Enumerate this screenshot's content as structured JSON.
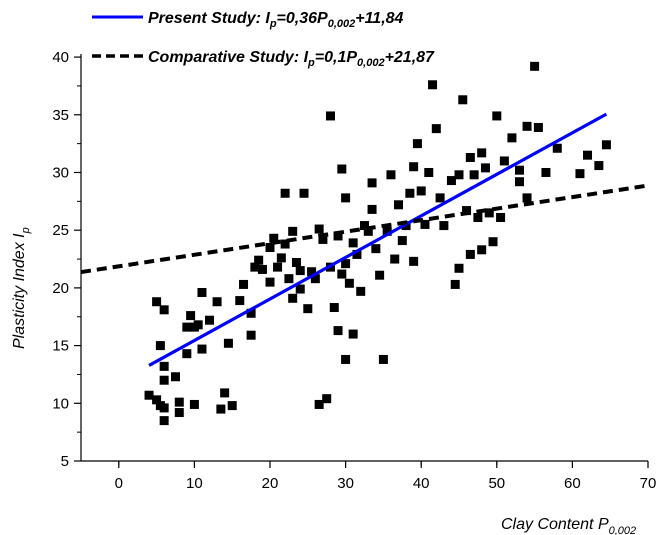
{
  "chart_data": {
    "type": "scatter",
    "xlabel": {
      "main": "Clay Content P",
      "sub": "0,002"
    },
    "ylabel": {
      "main": "Plasticity Index I",
      "sub": "p"
    },
    "xlim": [
      -5,
      70
    ],
    "ylim": [
      5,
      42
    ],
    "x_ticks": [
      0,
      10,
      20,
      30,
      40,
      50,
      60,
      70
    ],
    "y_ticks": [
      5,
      10,
      15,
      20,
      25,
      30,
      35,
      40
    ],
    "grid": false,
    "legend": {
      "placement": "top",
      "entries": [
        {
          "style": "solid",
          "color": "#0000ff",
          "parts": [
            "Present Study: I",
            "p",
            "=0,36P",
            "0,002",
            "+11,84"
          ]
        },
        {
          "style": "dashed",
          "color": "#000000",
          "parts": [
            "Comparative Study: I",
            "p",
            "=0,1P",
            "0,002",
            "+21,87"
          ]
        }
      ]
    },
    "series": [
      {
        "kind": "scatter",
        "marker": "square",
        "color": "#000000",
        "points": [
          [
            4,
            10.7
          ],
          [
            5,
            10.3
          ],
          [
            5.5,
            9.8
          ],
          [
            6,
            8.5
          ],
          [
            6,
            9.6
          ],
          [
            6,
            13.2
          ],
          [
            6,
            12
          ],
          [
            7.5,
            12.3
          ],
          [
            8,
            9.2
          ],
          [
            8,
            10.1
          ],
          [
            5,
            18.8
          ],
          [
            6,
            18.1
          ],
          [
            5.5,
            15
          ],
          [
            9,
            14.3
          ],
          [
            9,
            16.6
          ],
          [
            9.5,
            17.6
          ],
          [
            10,
            16.6
          ],
          [
            10.5,
            16.8
          ],
          [
            11,
            19.6
          ],
          [
            11,
            14.7
          ],
          [
            12,
            17.2
          ],
          [
            10,
            9.9
          ],
          [
            13,
            18.8
          ],
          [
            13.5,
            9.5
          ],
          [
            14,
            10.9
          ],
          [
            15,
            9.8
          ],
          [
            14.5,
            15.2
          ],
          [
            16,
            18.9
          ],
          [
            16.5,
            20.3
          ],
          [
            17.5,
            17.8
          ],
          [
            17.5,
            15.9
          ],
          [
            18,
            21.8
          ],
          [
            18.5,
            22.4
          ],
          [
            19,
            21.6
          ],
          [
            20,
            23.5
          ],
          [
            20,
            20.5
          ],
          [
            20.5,
            24.3
          ],
          [
            21,
            21.8
          ],
          [
            21.5,
            22.6
          ],
          [
            22,
            23.8
          ],
          [
            22,
            28.2
          ],
          [
            22.5,
            20.8
          ],
          [
            23,
            19.1
          ],
          [
            23,
            24.9
          ],
          [
            23.5,
            22.2
          ],
          [
            24,
            21.5
          ],
          [
            24,
            19.9
          ],
          [
            24.5,
            28.2
          ],
          [
            25,
            18.2
          ],
          [
            25.5,
            21.4
          ],
          [
            26,
            20.8
          ],
          [
            26.5,
            25.1
          ],
          [
            26.5,
            9.9
          ],
          [
            27,
            24.2
          ],
          [
            27.5,
            10.4
          ],
          [
            28,
            21.8
          ],
          [
            28,
            34.9
          ],
          [
            28.5,
            18.3
          ],
          [
            29,
            24.5
          ],
          [
            29,
            16.3
          ],
          [
            29.5,
            30.3
          ],
          [
            29.5,
            21.2
          ],
          [
            30,
            22.1
          ],
          [
            30,
            13.8
          ],
          [
            30,
            27.8
          ],
          [
            30.5,
            20.4
          ],
          [
            31,
            23.9
          ],
          [
            31,
            16
          ],
          [
            31.5,
            22.9
          ],
          [
            32,
            19.7
          ],
          [
            32.5,
            25.4
          ],
          [
            33,
            24.9
          ],
          [
            33.5,
            29.1
          ],
          [
            33.5,
            26.8
          ],
          [
            34,
            23.4
          ],
          [
            34.5,
            21.1
          ],
          [
            35,
            13.8
          ],
          [
            35.5,
            24.9
          ],
          [
            36,
            29.8
          ],
          [
            36.5,
            22.5
          ],
          [
            37,
            27.2
          ],
          [
            37.5,
            24.1
          ],
          [
            38,
            25.4
          ],
          [
            38.5,
            28.2
          ],
          [
            39,
            22.3
          ],
          [
            39,
            30.5
          ],
          [
            39.5,
            32.5
          ],
          [
            40,
            28.4
          ],
          [
            40.5,
            25.5
          ],
          [
            41,
            30
          ],
          [
            41.5,
            37.6
          ],
          [
            42,
            33.8
          ],
          [
            42.5,
            27.8
          ],
          [
            43,
            25.4
          ],
          [
            44,
            29.3
          ],
          [
            44.5,
            20.3
          ],
          [
            45,
            21.7
          ],
          [
            45,
            29.8
          ],
          [
            45.5,
            36.3
          ],
          [
            46,
            26.7
          ],
          [
            46.5,
            31.3
          ],
          [
            46.5,
            22.9
          ],
          [
            47,
            29.8
          ],
          [
            47.5,
            26.1
          ],
          [
            48,
            31.7
          ],
          [
            48,
            23.3
          ],
          [
            48.5,
            30.4
          ],
          [
            49,
            26.5
          ],
          [
            49.5,
            24
          ],
          [
            50,
            34.9
          ],
          [
            50.5,
            26.1
          ],
          [
            51,
            31
          ],
          [
            52,
            33
          ],
          [
            53,
            30.2
          ],
          [
            53,
            29.2
          ],
          [
            54,
            34
          ],
          [
            54,
            27.8
          ],
          [
            55,
            39.2
          ],
          [
            55.5,
            33.9
          ],
          [
            56.5,
            30
          ],
          [
            58,
            32.1
          ],
          [
            61,
            29.9
          ],
          [
            62,
            31.5
          ],
          [
            63.5,
            30.6
          ],
          [
            64.5,
            32.4
          ]
        ]
      },
      {
        "kind": "line",
        "style": "solid",
        "color": "#0000ff",
        "x": [
          4,
          64.5
        ],
        "y": [
          13.28,
          35.06
        ]
      },
      {
        "kind": "line",
        "style": "dashed",
        "color": "#000000",
        "x": [
          -5,
          70
        ],
        "y": [
          21.37,
          28.87
        ]
      }
    ]
  }
}
